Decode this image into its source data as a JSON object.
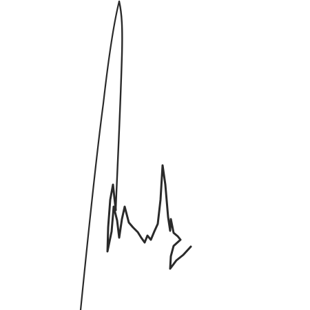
{
  "background_color": "#ffffff",
  "ink_color": "#2a2a2a",
  "signature": {
    "icon": "handwritten-signature-icon"
  }
}
